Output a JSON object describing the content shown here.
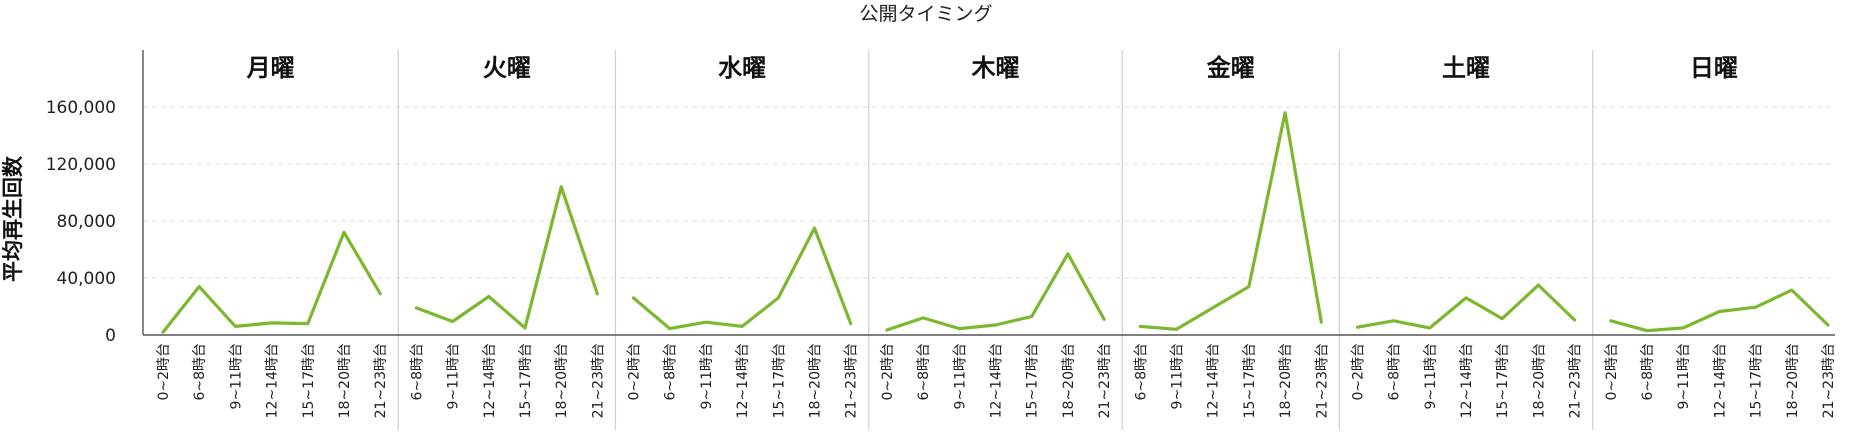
{
  "chart_data": {
    "type": "line",
    "title": "公開タイミング",
    "ylabel": "平均再生回数",
    "xlabel": "",
    "ylim": [
      0,
      200000
    ],
    "yticks": [
      0,
      40000,
      80000,
      120000,
      160000
    ],
    "ytick_labels": [
      "0",
      "40,000",
      "80,000",
      "120,000",
      "160,000"
    ],
    "grid": true,
    "line_color": "#7cb82f",
    "groups": [
      {
        "label": "月曜",
        "categories": [
          "0~2時台",
          "6~8時台",
          "9~11時台",
          "12~14時台",
          "15~17時台",
          "18~20時台",
          "21~23時台"
        ],
        "values": [
          2000,
          34000,
          6000,
          8500,
          8000,
          72000,
          29000
        ]
      },
      {
        "label": "火曜",
        "categories": [
          "6~8時台",
          "9~11時台",
          "12~14時台",
          "15~17時台",
          "18~20時台",
          "21~23時台"
        ],
        "values": [
          19000,
          9500,
          27000,
          5000,
          104000,
          29000
        ]
      },
      {
        "label": "水曜",
        "categories": [
          "0~2時台",
          "6~8時台",
          "9~11時台",
          "12~14時台",
          "15~17時台",
          "18~20時台",
          "21~23時台"
        ],
        "values": [
          26000,
          4500,
          9000,
          6000,
          26000,
          75000,
          8000
        ]
      },
      {
        "label": "木曜",
        "categories": [
          "0~2時台",
          "6~8時台",
          "9~11時台",
          "12~14時台",
          "15~17時台",
          "18~20時台",
          "21~23時台"
        ],
        "values": [
          3500,
          12000,
          4500,
          7000,
          13000,
          57000,
          11000
        ]
      },
      {
        "label": "金曜",
        "categories": [
          "6~8時台",
          "9~11時台",
          "12~14時台",
          "15~17時台",
          "18~20時台",
          "21~23時台"
        ],
        "values": [
          6000,
          4000,
          19000,
          34000,
          156000,
          9000
        ]
      },
      {
        "label": "土曜",
        "categories": [
          "0~2時台",
          "6~8時台",
          "9~11時台",
          "12~14時台",
          "15~17時台",
          "18~20時台",
          "21~23時台"
        ],
        "values": [
          5500,
          10000,
          5000,
          26000,
          11500,
          35000,
          10500
        ]
      },
      {
        "label": "日曜",
        "categories": [
          "0~2時台",
          "6~8時台",
          "9~11時台",
          "12~14時台",
          "15~17時台",
          "18~20時台",
          "21~23時台"
        ],
        "values": [
          10000,
          3000,
          5000,
          16500,
          19500,
          31500,
          7000
        ]
      }
    ]
  }
}
